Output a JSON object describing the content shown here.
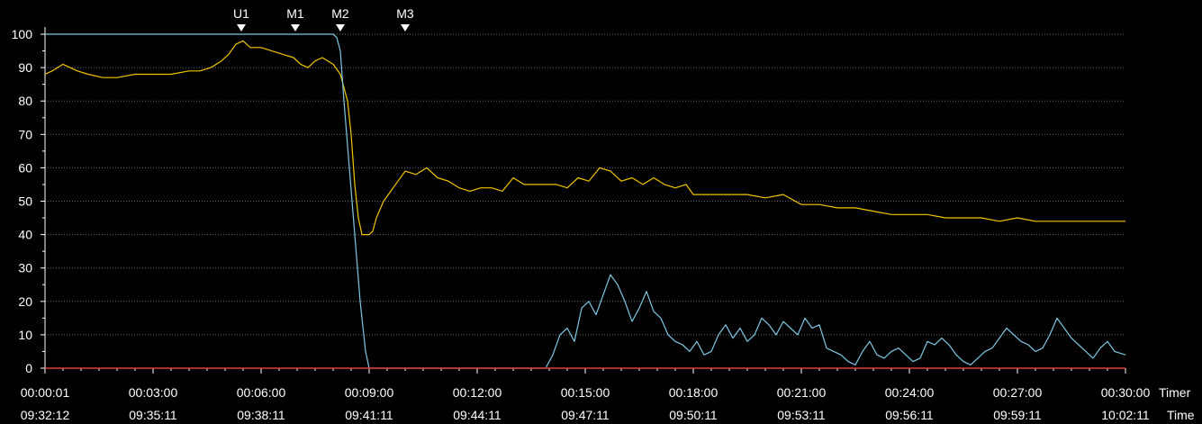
{
  "chart_data": {
    "type": "line",
    "title": "",
    "xlabel": "",
    "ylabel": "",
    "ylim": [
      0,
      100
    ],
    "y_ticks": [
      0,
      10,
      20,
      30,
      40,
      50,
      60,
      70,
      80,
      90,
      100
    ],
    "x_range_minutes": [
      0,
      30
    ],
    "grid": true,
    "x_tick_minutes": [
      0,
      3,
      6,
      9,
      12,
      15,
      18,
      21,
      24,
      27,
      30
    ],
    "x_tick_labels_timer": [
      "00:00:01",
      "00:03:00",
      "00:06:00",
      "00:09:00",
      "00:12:00",
      "00:15:00",
      "00:18:00",
      "00:21:00",
      "00:24:00",
      "00:27:00",
      "00:30:00"
    ],
    "x_tick_labels_time": [
      "09:32:12",
      "09:35:11",
      "09:38:11",
      "09:41:11",
      "09:44:11",
      "09:47:11",
      "09:50:11",
      "09:53:11",
      "09:56:11",
      "09:59:11",
      "10:02:11"
    ],
    "row_label_timer": "Timer",
    "row_label_time": "Time",
    "markers": [
      {
        "label": "U1",
        "minute": 5.45
      },
      {
        "label": "M1",
        "minute": 6.95
      },
      {
        "label": "M2",
        "minute": 8.2
      },
      {
        "label": "M3",
        "minute": 10.0
      }
    ],
    "series": [
      {
        "color": "#f2c500",
        "x": [
          0,
          0.2,
          0.5,
          0.9,
          1.2,
          1.6,
          2.0,
          2.5,
          3.0,
          3.5,
          4.0,
          4.3,
          4.6,
          4.9,
          5.1,
          5.3,
          5.5,
          5.7,
          6.0,
          6.3,
          6.6,
          6.9,
          7.1,
          7.3,
          7.5,
          7.7,
          8.0,
          8.2,
          8.4,
          8.5,
          8.6,
          8.7,
          8.8,
          8.9,
          9.0,
          9.1,
          9.2,
          9.4,
          9.6,
          9.8,
          10.0,
          10.3,
          10.6,
          10.9,
          11.2,
          11.5,
          11.8,
          12.1,
          12.4,
          12.7,
          13.0,
          13.3,
          13.6,
          13.9,
          14.2,
          14.5,
          14.8,
          15.1,
          15.4,
          15.7,
          16.0,
          16.3,
          16.6,
          16.9,
          17.2,
          17.5,
          17.8,
          18.0,
          18.5,
          19.0,
          19.5,
          20.0,
          20.5,
          21.0,
          21.5,
          22.0,
          22.5,
          23.0,
          23.5,
          24.0,
          24.5,
          25.0,
          25.5,
          26.0,
          26.5,
          27.0,
          27.5,
          28.0,
          28.5,
          29.0,
          29.5,
          30.0
        ],
        "y": [
          88,
          89,
          91,
          89,
          88,
          87,
          87,
          88,
          88,
          88,
          89,
          89,
          90,
          92,
          94,
          97,
          98,
          96,
          96,
          95,
          94,
          93,
          91,
          90,
          92,
          93,
          91,
          88,
          80,
          70,
          55,
          45,
          40,
          40,
          40,
          41,
          45,
          50,
          53,
          56,
          59,
          58,
          60,
          57,
          56,
          54,
          53,
          54,
          54,
          53,
          57,
          55,
          55,
          55,
          55,
          54,
          57,
          56,
          60,
          59,
          56,
          57,
          55,
          57,
          55,
          54,
          55,
          52,
          52,
          52,
          52,
          51,
          52,
          49,
          49,
          48,
          48,
          47,
          46,
          46,
          46,
          45,
          45,
          45,
          44,
          45,
          44,
          44,
          44,
          44,
          44,
          44
        ]
      },
      {
        "color": "#7ec8e3",
        "x": [
          0,
          1.0,
          2.0,
          3.0,
          4.0,
          5.0,
          6.0,
          7.0,
          8.0,
          8.1,
          8.2,
          8.3,
          8.45,
          8.6,
          8.75,
          8.9,
          9.0,
          13.9,
          14.1,
          14.3,
          14.5,
          14.7,
          14.9,
          15.1,
          15.3,
          15.5,
          15.7,
          15.9,
          16.1,
          16.3,
          16.5,
          16.7,
          16.9,
          17.1,
          17.3,
          17.5,
          17.7,
          17.9,
          18.1,
          18.3,
          18.5,
          18.7,
          18.9,
          19.1,
          19.3,
          19.5,
          19.7,
          19.9,
          20.1,
          20.3,
          20.5,
          20.7,
          20.9,
          21.1,
          21.3,
          21.5,
          21.7,
          21.9,
          22.1,
          22.3,
          22.5,
          22.7,
          22.9,
          23.1,
          23.3,
          23.5,
          23.7,
          23.9,
          24.1,
          24.3,
          24.5,
          24.7,
          24.9,
          25.1,
          25.3,
          25.5,
          25.7,
          25.9,
          26.1,
          26.3,
          26.5,
          26.7,
          26.9,
          27.1,
          27.3,
          27.5,
          27.7,
          27.9,
          28.1,
          28.3,
          28.5,
          28.7,
          28.9,
          29.1,
          29.3,
          29.5,
          29.7,
          30.0
        ],
        "y": [
          100,
          100,
          100,
          100,
          100,
          100,
          100,
          100,
          100,
          99,
          95,
          80,
          60,
          40,
          20,
          5,
          0,
          0,
          4,
          10,
          12,
          8,
          18,
          20,
          16,
          22,
          28,
          25,
          20,
          14,
          18,
          23,
          17,
          15,
          10,
          8,
          7,
          5,
          8,
          4,
          5,
          10,
          13,
          9,
          12,
          8,
          10,
          15,
          13,
          10,
          14,
          12,
          10,
          15,
          12,
          13,
          6,
          5,
          4,
          2,
          1,
          5,
          8,
          4,
          3,
          5,
          6,
          4,
          2,
          3,
          8,
          7,
          9,
          7,
          4,
          2,
          1,
          3,
          5,
          6,
          9,
          12,
          10,
          8,
          7,
          5,
          6,
          10,
          15,
          12,
          9,
          7,
          5,
          3,
          6,
          8,
          5,
          4
        ]
      },
      {
        "color": "#e03a3a",
        "x": [
          0,
          30
        ],
        "y": [
          0,
          0
        ]
      }
    ]
  }
}
